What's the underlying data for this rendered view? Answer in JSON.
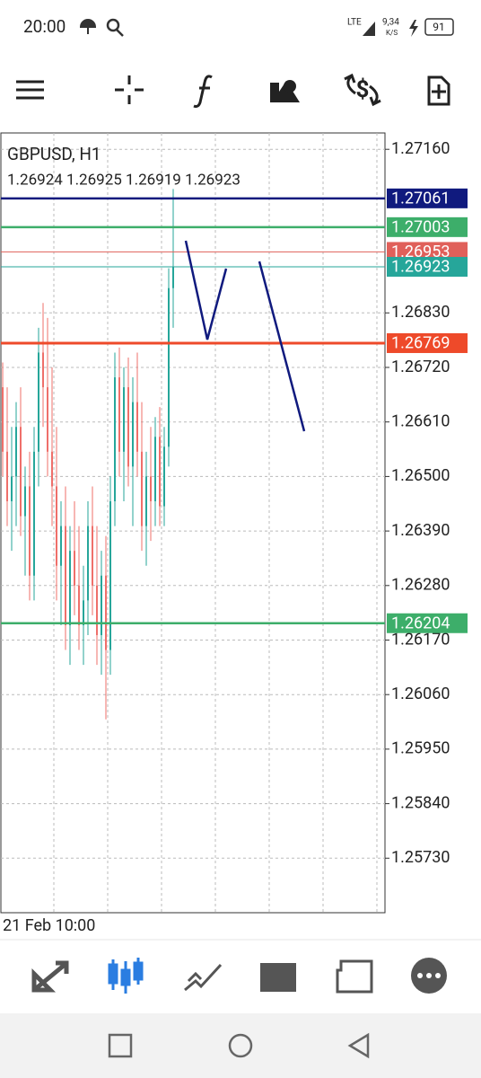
{
  "status_bar": {
    "time": "20:00",
    "network": "LTE",
    "speed": "9,34",
    "speed_unit": "K/S",
    "battery": "91"
  },
  "chart": {
    "symbol": "GBPUSD, H1",
    "ohlc": "1.26924 1.26925 1.26919 1.26923",
    "x_label": "21 Feb 10:00",
    "ylim": [
      1.2562,
      1.27193
    ],
    "yticks": [
      {
        "value": 1.2716,
        "label": "1.27160"
      },
      {
        "value": 1.2683,
        "label": "1.26830"
      },
      {
        "value": 1.2672,
        "label": "1.26720"
      },
      {
        "value": 1.2661,
        "label": "1.26610"
      },
      {
        "value": 1.265,
        "label": "1.26500"
      },
      {
        "value": 1.2639,
        "label": "1.26390"
      },
      {
        "value": 1.2628,
        "label": "1.26280"
      },
      {
        "value": 1.2617,
        "label": "1.26170"
      },
      {
        "value": 1.2606,
        "label": "1.26060"
      },
      {
        "value": 1.2595,
        "label": "1.25950"
      },
      {
        "value": 1.2584,
        "label": "1.25840"
      },
      {
        "value": 1.2573,
        "label": "1.25730"
      }
    ],
    "up_color": "#26a69a",
    "down_color": "#ef6f6a",
    "levels": [
      {
        "value": 1.27061,
        "color": "#101a7e"
      },
      {
        "value": 1.27003,
        "color": "#3dae6a"
      },
      {
        "value": 1.26953,
        "color": "#e0605a"
      },
      {
        "value": 1.26923,
        "color": "#26a69a"
      },
      {
        "value": 1.26769,
        "color": "#ee4a2a"
      },
      {
        "value": 1.26204,
        "color": "#3dae6a"
      }
    ],
    "candles": [
      [
        1.2668,
        1.2673,
        1.265,
        1.2655
      ],
      [
        1.2655,
        1.2668,
        1.264,
        1.2645
      ],
      [
        1.2645,
        1.266,
        1.2635,
        1.265
      ],
      [
        1.265,
        1.2665,
        1.264,
        1.266
      ],
      [
        1.266,
        1.2668,
        1.2638,
        1.2642
      ],
      [
        1.2642,
        1.2652,
        1.263,
        1.2648
      ],
      [
        1.2648,
        1.2655,
        1.2625,
        1.263
      ],
      [
        1.263,
        1.266,
        1.2625,
        1.2655
      ],
      [
        1.2655,
        1.268,
        1.2648,
        1.2675
      ],
      [
        1.2675,
        1.2685,
        1.266,
        1.2668
      ],
      [
        1.2668,
        1.2682,
        1.265,
        1.2655
      ],
      [
        1.2655,
        1.2672,
        1.264,
        1.2648
      ],
      [
        1.2648,
        1.266,
        1.2625,
        1.2632
      ],
      [
        1.2632,
        1.2645,
        1.262,
        1.264
      ],
      [
        1.264,
        1.2648,
        1.2615,
        1.262
      ],
      [
        1.262,
        1.264,
        1.2612,
        1.2635
      ],
      [
        1.2635,
        1.2645,
        1.2622,
        1.2628
      ],
      [
        1.2628,
        1.264,
        1.2615,
        1.262
      ],
      [
        1.262,
        1.2632,
        1.2612,
        1.2625
      ],
      [
        1.2625,
        1.2645,
        1.2618,
        1.264
      ],
      [
        1.264,
        1.2648,
        1.2622,
        1.2628
      ],
      [
        1.2628,
        1.264,
        1.2612,
        1.2618
      ],
      [
        1.2618,
        1.2635,
        1.261,
        1.263
      ],
      [
        1.263,
        1.2638,
        1.2601,
        1.2615
      ],
      [
        1.2615,
        1.265,
        1.261,
        1.2645
      ],
      [
        1.2645,
        1.2675,
        1.264,
        1.267
      ],
      [
        1.267,
        1.2676,
        1.265,
        1.2655
      ],
      [
        1.2655,
        1.2672,
        1.2645,
        1.2668
      ],
      [
        1.2668,
        1.2674,
        1.2648,
        1.2652
      ],
      [
        1.2652,
        1.267,
        1.264,
        1.2665
      ],
      [
        1.2665,
        1.2675,
        1.265,
        1.2655
      ],
      [
        1.2655,
        1.2665,
        1.2635,
        1.264
      ],
      [
        1.264,
        1.2655,
        1.2632,
        1.265
      ],
      [
        1.265,
        1.266,
        1.2637,
        1.2645
      ],
      [
        1.2645,
        1.2662,
        1.264,
        1.2658
      ],
      [
        1.2658,
        1.2664,
        1.264,
        1.2644
      ],
      [
        1.2644,
        1.266,
        1.264,
        1.2656
      ],
      [
        1.2656,
        1.2692,
        1.2652,
        1.2688
      ],
      [
        1.2688,
        1.2708,
        1.268,
        1.26923
      ]
    ]
  }
}
